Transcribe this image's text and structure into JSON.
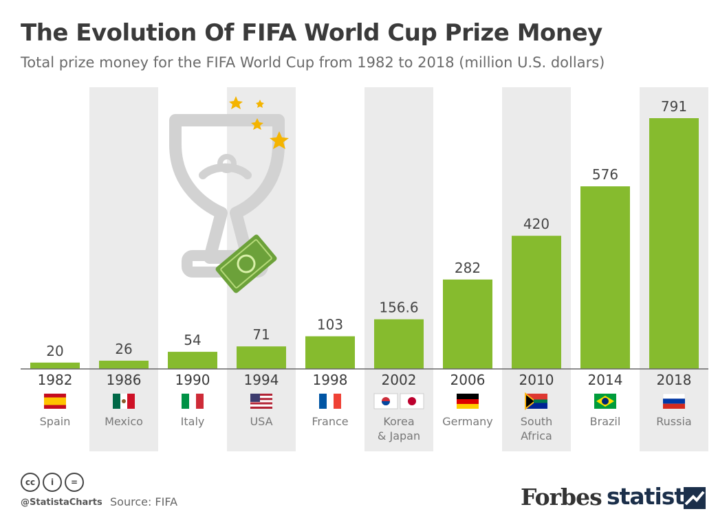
{
  "title": "The Evolution Of FIFA World Cup Prize Money",
  "subtitle": "Total prize money for the FIFA World Cup from 1982 to 2018 (million U.S. dollars)",
  "chart_data": {
    "type": "bar",
    "title": "The Evolution Of FIFA World Cup Prize Money",
    "subtitle": "Total prize money for the FIFA World Cup from 1982 to 2018 (million U.S. dollars)",
    "categories": [
      "1982",
      "1986",
      "1990",
      "1994",
      "1998",
      "2002",
      "2006",
      "2010",
      "2014",
      "2018"
    ],
    "hosts": [
      [
        "Spain"
      ],
      [
        "Mexico"
      ],
      [
        "Italy"
      ],
      [
        "USA"
      ],
      [
        "France"
      ],
      [
        "Korea",
        "& Japan"
      ],
      [
        "Germany"
      ],
      [
        "South",
        "Africa"
      ],
      [
        "Brazil"
      ],
      [
        "Russia"
      ]
    ],
    "value_labels": [
      "20",
      "26",
      "54",
      "71",
      "103",
      "156.6",
      "282",
      "420",
      "576",
      "791"
    ],
    "values": [
      20,
      26,
      54,
      71,
      103,
      156.6,
      282,
      420,
      576,
      791
    ],
    "ylim": [
      0,
      820
    ],
    "grid": false,
    "bar_color": "#86bb2e",
    "band_color": "#ebebeb"
  },
  "footer": {
    "handle": "@StatistaCharts",
    "source": "Source: FIFA",
    "cc_icons": [
      "cc",
      "i",
      "="
    ],
    "forbes": "Forbes",
    "statista": "statista"
  }
}
